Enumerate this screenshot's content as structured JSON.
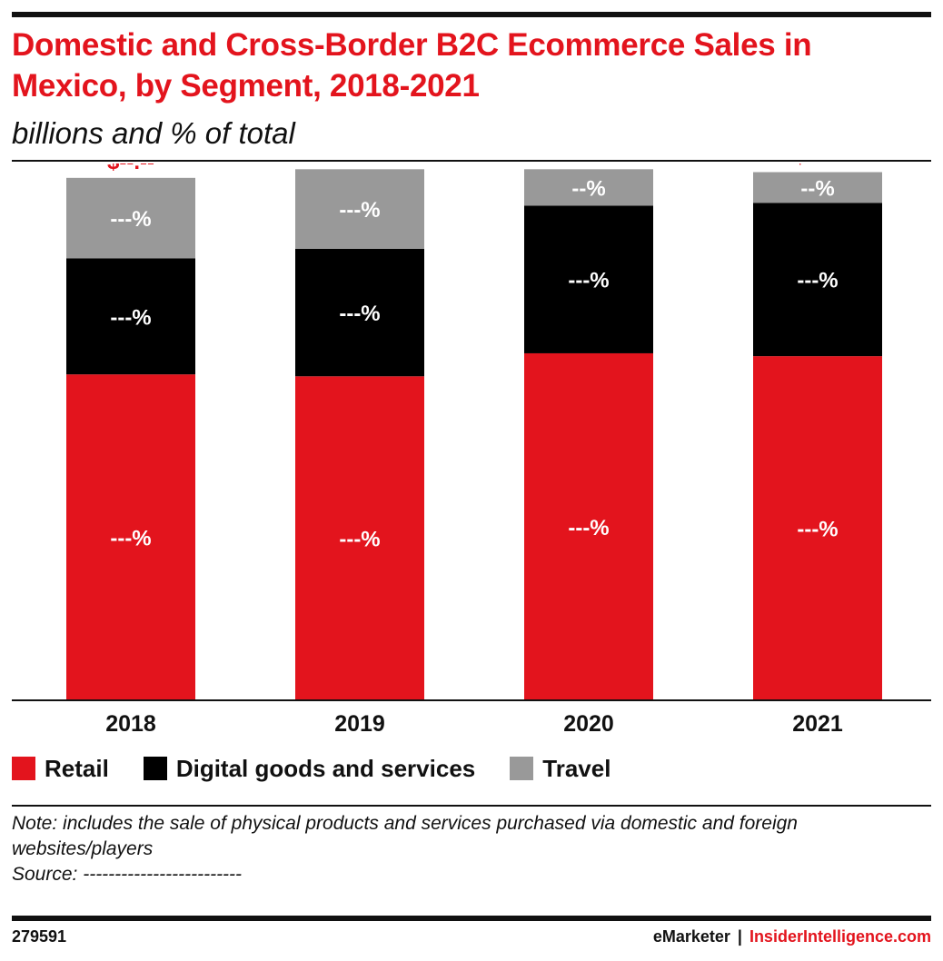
{
  "header": {
    "title": "Domestic and Cross-Border B2C Ecommerce Sales in Mexico, by Segment, 2018-2021",
    "subtitle": "billions and % of total"
  },
  "chart_data": {
    "type": "bar",
    "stacked": true,
    "title": "Domestic and Cross-Border B2C Ecommerce Sales in Mexico, by Segment, 2018-2021",
    "subtitle": "billions and % of total",
    "categories": [
      "2018",
      "2019",
      "2020",
      "2021"
    ],
    "series": [
      {
        "name": "Retail",
        "color": "#e3141d",
        "values": [
          340,
          338,
          362,
          359
        ],
        "labels": [
          "---%",
          "---%",
          "---%",
          "---%"
        ]
      },
      {
        "name": "Digital goods and services",
        "color": "#000000",
        "values": [
          121,
          133,
          154,
          160
        ],
        "labels": [
          "---%",
          "---%",
          "---%",
          "---%"
        ]
      },
      {
        "name": "Travel",
        "color": "#999999",
        "values": [
          84,
          83,
          38,
          32
        ],
        "labels": [
          "---%",
          "---%",
          "--%",
          "--%"
        ]
      }
    ],
    "total_labels": [
      "$--.--",
      "$--.--",
      "$--.--",
      "$--.--"
    ],
    "ylim": [
      0,
      560
    ],
    "grid": false,
    "legend": "bottom-left"
  },
  "footer": {
    "note": "Note: includes the sale of physical products and services purchased via domestic and foreign websites/players",
    "source": "Source: -------------------------",
    "chart_id": "279591",
    "brand_left": "eMarketer",
    "separator": "|",
    "brand_right": "InsiderIntelligence.com"
  }
}
